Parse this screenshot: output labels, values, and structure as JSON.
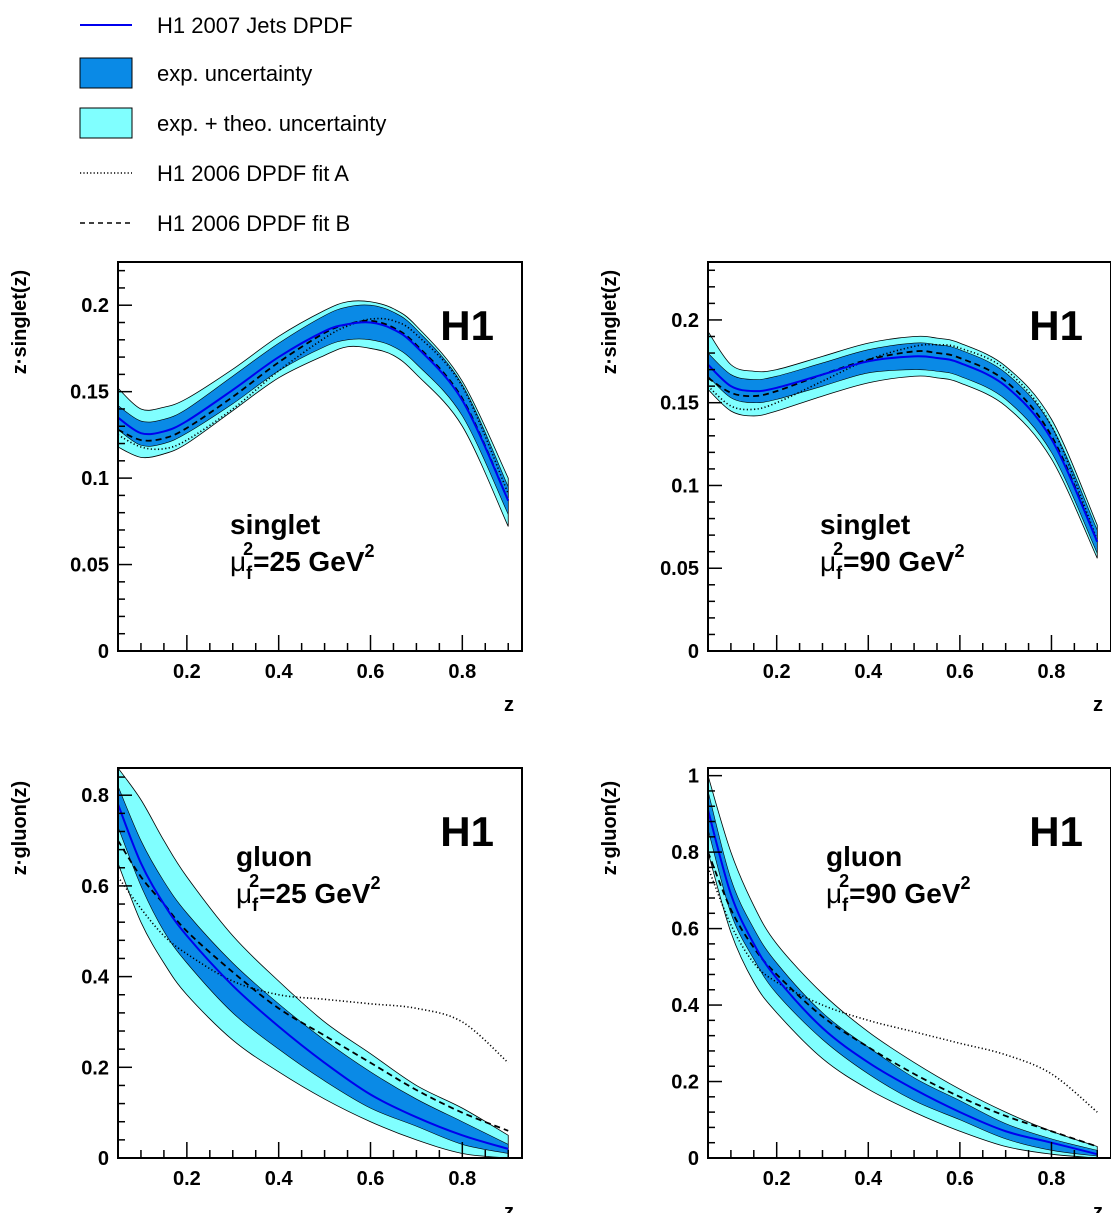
{
  "legend": [
    {
      "key": "jets",
      "label": "H1 2007 Jets DPDF",
      "style": "line",
      "color": "#0000ee"
    },
    {
      "key": "exp",
      "label": "exp. uncertainty",
      "style": "box",
      "color": "#0a8ae6"
    },
    {
      "key": "theo",
      "label": "exp. + theo. uncertainty",
      "style": "box",
      "color": "#80ffff"
    },
    {
      "key": "fitA",
      "label": "H1 2006 DPDF fit A",
      "style": "dotted",
      "color": "#000000"
    },
    {
      "key": "fitB",
      "label": "H1 2006 DPDF fit B",
      "style": "dashed",
      "color": "#000000"
    }
  ],
  "colors": {
    "exp": "#0a8ae6",
    "theo": "#80ffff",
    "central": "#0000ee",
    "fits": "#000000"
  },
  "chart_data": [
    {
      "type": "area",
      "id": "singlet25",
      "ylabel": "z·singlet(z)",
      "xlabel": "z",
      "h1": "H1",
      "ann1": "singlet",
      "ann2": "=25 GeV",
      "sym": "μ",
      "sub": "f",
      "sup": "2",
      "xlim": [
        0.05,
        0.93
      ],
      "ylim": [
        0,
        0.225
      ],
      "xticks": [
        0.2,
        0.4,
        0.6,
        0.8
      ],
      "xtick_labels": [
        "0.2",
        "0.4",
        "0.6",
        "0.8"
      ],
      "yticks": [
        0,
        0.05,
        0.1,
        0.15,
        0.2
      ],
      "ytick_labels": [
        "0",
        "0.05",
        "0.1",
        "0.15",
        "0.2"
      ],
      "x": [
        0.05,
        0.1,
        0.15,
        0.2,
        0.3,
        0.4,
        0.5,
        0.55,
        0.6,
        0.65,
        0.7,
        0.8,
        0.9
      ],
      "central": [
        0.135,
        0.126,
        0.127,
        0.133,
        0.151,
        0.17,
        0.185,
        0.189,
        0.19,
        0.186,
        0.176,
        0.145,
        0.087
      ],
      "exp_hi": [
        0.142,
        0.133,
        0.134,
        0.14,
        0.159,
        0.178,
        0.194,
        0.199,
        0.2,
        0.196,
        0.186,
        0.154,
        0.095
      ],
      "exp_lo": [
        0.128,
        0.119,
        0.12,
        0.126,
        0.143,
        0.162,
        0.176,
        0.18,
        0.18,
        0.176,
        0.166,
        0.136,
        0.079
      ],
      "theo_hi": [
        0.152,
        0.14,
        0.141,
        0.146,
        0.163,
        0.182,
        0.197,
        0.202,
        0.202,
        0.198,
        0.188,
        0.156,
        0.1
      ],
      "theo_lo": [
        0.118,
        0.112,
        0.114,
        0.12,
        0.139,
        0.158,
        0.171,
        0.176,
        0.175,
        0.171,
        0.16,
        0.13,
        0.072
      ],
      "fitA": [
        0.125,
        0.118,
        0.117,
        0.122,
        0.14,
        0.162,
        0.181,
        0.188,
        0.192,
        0.191,
        0.183,
        0.153,
        0.091
      ],
      "fitB": [
        0.128,
        0.122,
        0.123,
        0.129,
        0.147,
        0.167,
        0.184,
        0.189,
        0.191,
        0.187,
        0.177,
        0.146,
        0.087
      ]
    },
    {
      "type": "area",
      "id": "singlet90",
      "ylabel": "z·singlet(z)",
      "xlabel": "z",
      "h1": "H1",
      "ann1": "singlet",
      "ann2": "=90 GeV",
      "sym": "μ",
      "sub": "f",
      "sup": "2",
      "xlim": [
        0.05,
        0.93
      ],
      "ylim": [
        0,
        0.235
      ],
      "xticks": [
        0.2,
        0.4,
        0.6,
        0.8
      ],
      "xtick_labels": [
        "0.2",
        "0.4",
        "0.6",
        "0.8"
      ],
      "yticks": [
        0,
        0.05,
        0.1,
        0.15,
        0.2
      ],
      "ytick_labels": [
        "0",
        "0.05",
        "0.1",
        "0.15",
        "0.2"
      ],
      "x": [
        0.05,
        0.1,
        0.15,
        0.2,
        0.3,
        0.4,
        0.5,
        0.55,
        0.6,
        0.7,
        0.8,
        0.9
      ],
      "central": [
        0.173,
        0.16,
        0.157,
        0.159,
        0.167,
        0.175,
        0.178,
        0.177,
        0.174,
        0.16,
        0.128,
        0.066
      ],
      "exp_hi": [
        0.18,
        0.167,
        0.164,
        0.166,
        0.174,
        0.182,
        0.186,
        0.185,
        0.182,
        0.168,
        0.136,
        0.073
      ],
      "exp_lo": [
        0.166,
        0.153,
        0.15,
        0.152,
        0.16,
        0.168,
        0.17,
        0.169,
        0.166,
        0.152,
        0.12,
        0.059
      ],
      "theo_hi": [
        0.193,
        0.173,
        0.169,
        0.17,
        0.178,
        0.186,
        0.19,
        0.189,
        0.186,
        0.172,
        0.14,
        0.076
      ],
      "theo_lo": [
        0.158,
        0.145,
        0.142,
        0.145,
        0.154,
        0.162,
        0.166,
        0.165,
        0.162,
        0.148,
        0.116,
        0.056
      ],
      "fitA": [
        0.16,
        0.148,
        0.146,
        0.15,
        0.163,
        0.176,
        0.184,
        0.185,
        0.183,
        0.17,
        0.136,
        0.067
      ],
      "fitB": [
        0.165,
        0.156,
        0.154,
        0.157,
        0.167,
        0.176,
        0.181,
        0.18,
        0.177,
        0.163,
        0.13,
        0.066
      ]
    },
    {
      "type": "area",
      "id": "gluon25",
      "ylabel": "z·gluon(z)",
      "xlabel": "z",
      "h1": "H1",
      "ann1": "gluon",
      "ann2": "=25 GeV",
      "sym": "μ",
      "sub": "f",
      "sup": "2",
      "xlim": [
        0.05,
        0.93
      ],
      "ylim": [
        0,
        0.86
      ],
      "xticks": [
        0.2,
        0.4,
        0.6,
        0.8
      ],
      "xtick_labels": [
        "0.2",
        "0.4",
        "0.6",
        "0.8"
      ],
      "yticks": [
        0,
        0.2,
        0.4,
        0.6,
        0.8
      ],
      "ytick_labels": [
        "0",
        "0.2",
        "0.4",
        "0.6",
        "0.8"
      ],
      "x": [
        0.05,
        0.1,
        0.15,
        0.2,
        0.3,
        0.4,
        0.5,
        0.6,
        0.7,
        0.8,
        0.9
      ],
      "central": [
        0.78,
        0.65,
        0.56,
        0.49,
        0.38,
        0.29,
        0.21,
        0.14,
        0.09,
        0.05,
        0.02
      ],
      "exp_hi": [
        0.82,
        0.7,
        0.61,
        0.54,
        0.43,
        0.34,
        0.26,
        0.19,
        0.13,
        0.08,
        0.03
      ],
      "exp_lo": [
        0.73,
        0.6,
        0.5,
        0.43,
        0.32,
        0.24,
        0.17,
        0.11,
        0.07,
        0.03,
        0.01
      ],
      "theo_hi": [
        0.86,
        0.79,
        0.7,
        0.62,
        0.49,
        0.39,
        0.3,
        0.23,
        0.16,
        0.11,
        0.05
      ],
      "theo_lo": [
        0.65,
        0.52,
        0.43,
        0.36,
        0.26,
        0.19,
        0.13,
        0.08,
        0.04,
        0.01,
        0.0
      ],
      "fitA": [
        0.62,
        0.55,
        0.49,
        0.45,
        0.39,
        0.36,
        0.35,
        0.34,
        0.33,
        0.3,
        0.21
      ],
      "fitB": [
        0.7,
        0.62,
        0.56,
        0.5,
        0.41,
        0.33,
        0.27,
        0.21,
        0.15,
        0.1,
        0.06
      ]
    },
    {
      "type": "area",
      "id": "gluon90",
      "ylabel": "z·gluon(z)",
      "xlabel": "z",
      "h1": "H1",
      "ann1": "gluon",
      "ann2": "=90 GeV",
      "sym": "μ",
      "sub": "f",
      "sup": "2",
      "xlim": [
        0.05,
        0.93
      ],
      "ylim": [
        0,
        1.02
      ],
      "xticks": [
        0.2,
        0.4,
        0.6,
        0.8
      ],
      "xtick_labels": [
        "0.2",
        "0.4",
        "0.6",
        "0.8"
      ],
      "yticks": [
        0,
        0.2,
        0.4,
        0.6,
        0.8,
        1.0
      ],
      "ytick_labels": [
        "0",
        "0.2",
        "0.4",
        "0.6",
        "0.8",
        "1"
      ],
      "x": [
        0.05,
        0.1,
        0.15,
        0.2,
        0.3,
        0.4,
        0.5,
        0.6,
        0.7,
        0.8,
        0.9
      ],
      "central": [
        0.91,
        0.69,
        0.56,
        0.47,
        0.34,
        0.25,
        0.18,
        0.12,
        0.07,
        0.04,
        0.01
      ],
      "exp_hi": [
        0.96,
        0.73,
        0.6,
        0.51,
        0.38,
        0.29,
        0.21,
        0.15,
        0.09,
        0.05,
        0.02
      ],
      "exp_lo": [
        0.86,
        0.64,
        0.52,
        0.43,
        0.31,
        0.22,
        0.15,
        0.1,
        0.05,
        0.02,
        0.005
      ],
      "theo_hi": [
        1.0,
        0.8,
        0.66,
        0.56,
        0.43,
        0.33,
        0.25,
        0.18,
        0.12,
        0.07,
        0.03
      ],
      "theo_lo": [
        0.8,
        0.59,
        0.46,
        0.38,
        0.26,
        0.18,
        0.12,
        0.07,
        0.03,
        0.01,
        0.0
      ],
      "fitA": [
        0.76,
        0.61,
        0.51,
        0.46,
        0.4,
        0.36,
        0.33,
        0.3,
        0.27,
        0.22,
        0.12
      ],
      "fitB": [
        0.8,
        0.65,
        0.55,
        0.48,
        0.37,
        0.29,
        0.22,
        0.16,
        0.11,
        0.07,
        0.03
      ]
    }
  ]
}
